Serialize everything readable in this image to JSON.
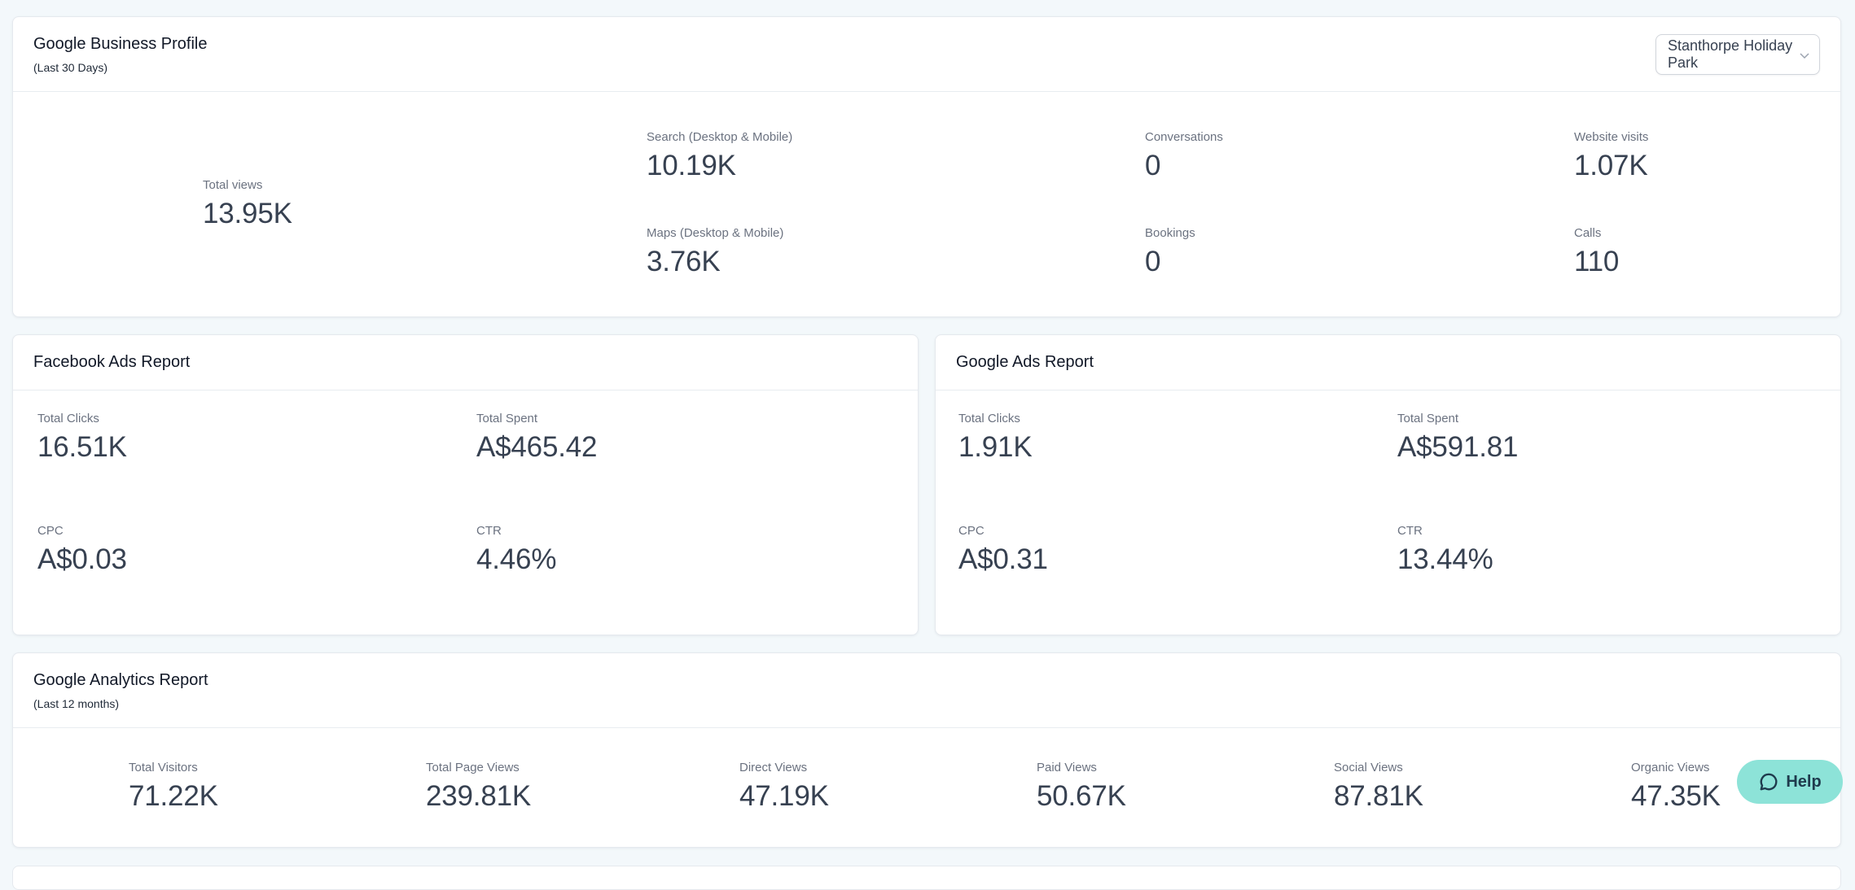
{
  "gbp": {
    "title": "Google Business Profile",
    "subtitle": "(Last 30 Days)",
    "location_select": "Stanthorpe Holiday Park",
    "metrics": {
      "total_views": {
        "label": "Total views",
        "value": "13.95K"
      },
      "search": {
        "label": "Search (Desktop & Mobile)",
        "value": "10.19K"
      },
      "maps": {
        "label": "Maps (Desktop & Mobile)",
        "value": "3.76K"
      },
      "conversations": {
        "label": "Conversations",
        "value": "0"
      },
      "bookings": {
        "label": "Bookings",
        "value": "0"
      },
      "website_visits": {
        "label": "Website visits",
        "value": "1.07K"
      },
      "calls": {
        "label": "Calls",
        "value": "110"
      }
    }
  },
  "facebook": {
    "title": "Facebook Ads Report",
    "metrics": {
      "clicks": {
        "label": "Total Clicks",
        "value": "16.51K"
      },
      "spent": {
        "label": "Total Spent",
        "value": "A$465.42"
      },
      "cpc": {
        "label": "CPC",
        "value": "A$0.03"
      },
      "ctr": {
        "label": "CTR",
        "value": "4.46%"
      }
    }
  },
  "google_ads": {
    "title": "Google Ads Report",
    "metrics": {
      "clicks": {
        "label": "Total Clicks",
        "value": "1.91K"
      },
      "spent": {
        "label": "Total Spent",
        "value": "A$591.81"
      },
      "cpc": {
        "label": "CPC",
        "value": "A$0.31"
      },
      "ctr": {
        "label": "CTR",
        "value": "13.44%"
      }
    }
  },
  "analytics": {
    "title": "Google Analytics Report",
    "subtitle": "(Last 12 months)",
    "metrics": {
      "visitors": {
        "label": "Total Visitors",
        "value": "71.22K"
      },
      "page_views": {
        "label": "Total Page Views",
        "value": "239.81K"
      },
      "direct": {
        "label": "Direct Views",
        "value": "47.19K"
      },
      "paid": {
        "label": "Paid Views",
        "value": "50.67K"
      },
      "social": {
        "label": "Social Views",
        "value": "87.81K"
      },
      "organic": {
        "label": "Organic Views",
        "value": "47.35K"
      }
    }
  },
  "help": {
    "label": "Help",
    "icon": "chat-bubble-icon"
  },
  "colors": {
    "help_bg": "#8de3d8",
    "value_text": "#374151",
    "label_text": "#6b7280"
  }
}
